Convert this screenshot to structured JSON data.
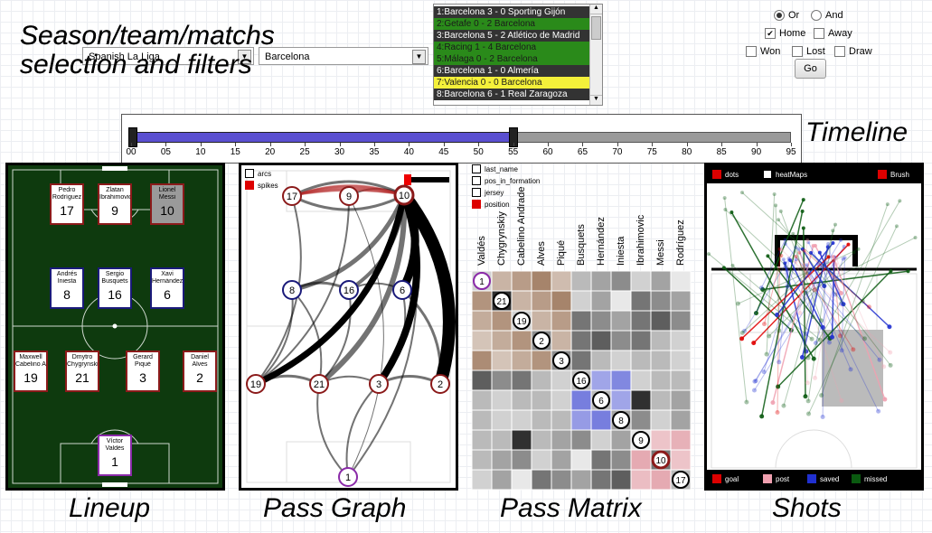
{
  "headings": {
    "selection": "Season/team/matchs",
    "selection_line2": "selection and filters",
    "timeline": "Timeline"
  },
  "captions": {
    "lineup": "Lineup",
    "pass_graph": "Pass Graph",
    "pass_matrix": "Pass Matrix",
    "shots": "Shots"
  },
  "selectors": {
    "league": "Spanish La Liga",
    "team": "Barcelona"
  },
  "matches": [
    {
      "label": "1:Barcelona 3 - 0 Sporting Gijón",
      "color": "#333333",
      "text": "#ffffff"
    },
    {
      "label": "2:Getafe 0 - 2 Barcelona",
      "color": "#2a8a1a",
      "text": "#1a1a1a"
    },
    {
      "label": "3:Barcelona 5 - 2 Atlético de Madrid",
      "color": "#333333",
      "text": "#ffffff"
    },
    {
      "label": "4:Racing 1 - 4 Barcelona",
      "color": "#2a8a1a",
      "text": "#1a1a1a"
    },
    {
      "label": "5:Málaga 0 - 2 Barcelona",
      "color": "#2a8a1a",
      "text": "#1a1a1a"
    },
    {
      "label": "6:Barcelona 1 - 0 Almería",
      "color": "#333333",
      "text": "#ffffff"
    },
    {
      "label": "7:Valencia 0 - 0 Barcelona",
      "color": "#f4f03a",
      "text": "#1a1a1a"
    },
    {
      "label": "8:Barcelona 6 - 1 Real Zaragoza",
      "color": "#333333",
      "text": "#ffffff"
    }
  ],
  "filters": {
    "or": "Or",
    "and": "And",
    "home": "Home",
    "away": "Away",
    "won": "Won",
    "lost": "Lost",
    "draw": "Draw",
    "go": "Go",
    "or_selected": true,
    "home_checked": true
  },
  "timeline": {
    "ticks": [
      "00",
      "05",
      "10",
      "15",
      "20",
      "25",
      "30",
      "35",
      "40",
      "45",
      "50",
      "55",
      "60",
      "65",
      "70",
      "75",
      "80",
      "85",
      "90",
      "95"
    ],
    "range_start": 0,
    "range_end": 55,
    "max": 95,
    "selected_color": "#5a4fd0",
    "unselected_color": "#9a9a9a"
  },
  "lineup": {
    "players": [
      {
        "first": "Pedro",
        "last": "Rodríguez",
        "number": "17",
        "style": "red"
      },
      {
        "first": "Zlatan",
        "last": "Ibrahimovic",
        "number": "9",
        "style": "red"
      },
      {
        "first": "Lionel",
        "last": "Messi",
        "number": "10",
        "style": "sel"
      },
      {
        "first": "Andrés",
        "last": "Iniesta",
        "number": "8",
        "style": "blue"
      },
      {
        "first": "Sergio",
        "last": "Busquets",
        "number": "16",
        "style": "blue"
      },
      {
        "first": "Xavi",
        "last": "Hernández",
        "number": "6",
        "style": "blue"
      },
      {
        "first": "Maxwell",
        "last": "Cabelino Andrade",
        "number": "19",
        "style": "red"
      },
      {
        "first": "Dmytro",
        "last": "Chygrynskiy",
        "number": "21",
        "style": "red"
      },
      {
        "first": "Gerard",
        "last": "Piqué",
        "number": "3",
        "style": "red"
      },
      {
        "first": "Daniel",
        "last": "Alves",
        "number": "2",
        "style": "red"
      },
      {
        "first": "Víctor",
        "last": "Valdés",
        "number": "1",
        "style": "gk"
      }
    ]
  },
  "pass_graph": {
    "legend": {
      "arcs": "arcs",
      "spikes": "spikes"
    },
    "nodes": [
      "17",
      "9",
      "10",
      "8",
      "16",
      "6",
      "19",
      "21",
      "3",
      "2",
      "1"
    ]
  },
  "pass_matrix": {
    "legend": [
      "last_name",
      "pos_in_formation",
      "jersey",
      "position"
    ],
    "columns": [
      "Valdés",
      "Chygrynskiy",
      "Cabelino Andrade",
      "Alves",
      "Piqué",
      "Busquets",
      "Hernández",
      "Iniesta",
      "Ibrahimovic",
      "Messi",
      "Rodríguez"
    ],
    "diagonal": [
      "1",
      "21",
      "19",
      "2",
      "3",
      "16",
      "6",
      "8",
      "9",
      "10",
      "17"
    ]
  },
  "shots": {
    "legend_top": {
      "dots": "dots",
      "heatmaps": "heatMaps",
      "brush": "Brush"
    },
    "legend_bottom": {
      "goal": "goal",
      "post": "post",
      "saved": "saved",
      "missed": "missed"
    },
    "colors": {
      "goal": "#e00000",
      "post": "#f0a0b0",
      "saved": "#2030d0",
      "missed": "#0a5a10"
    }
  }
}
